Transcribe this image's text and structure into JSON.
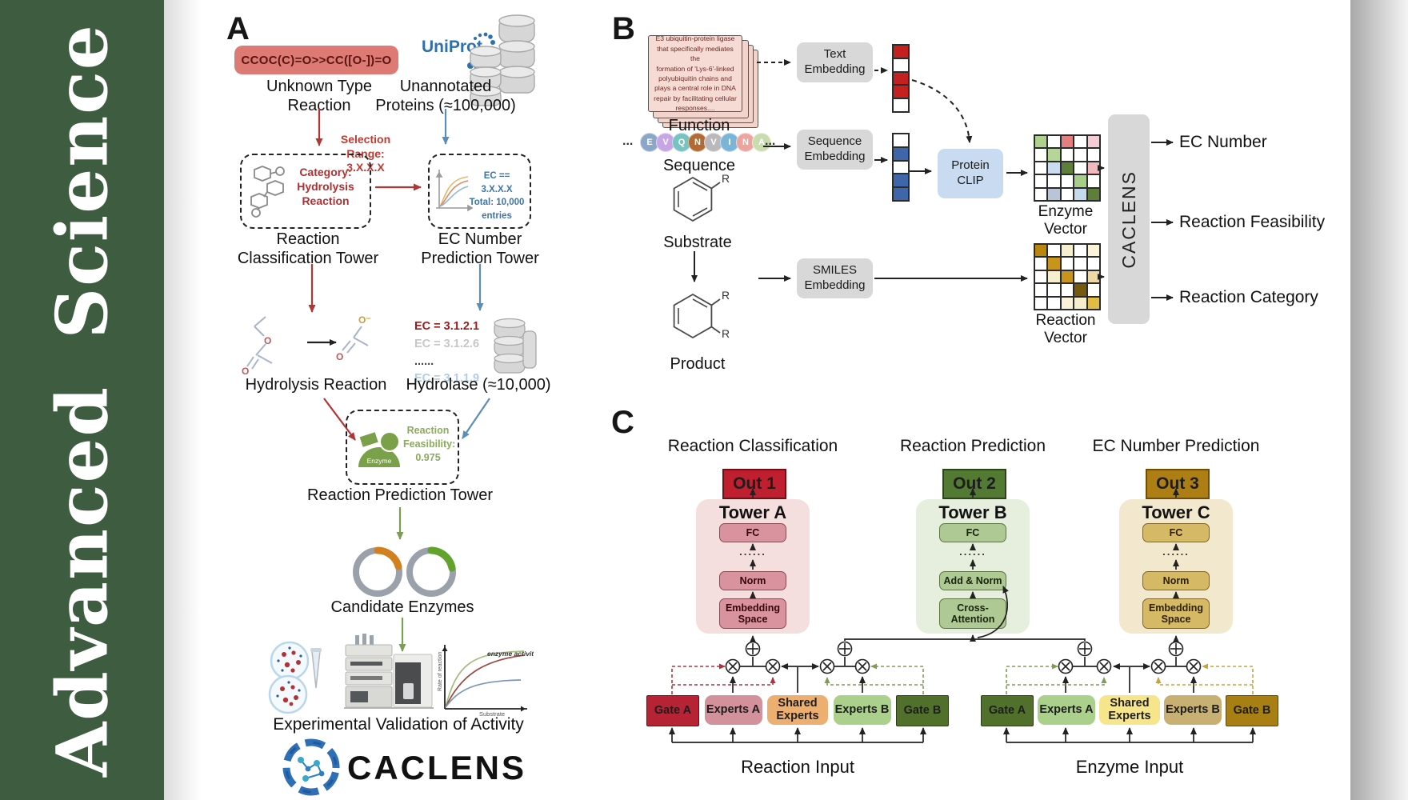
{
  "sidebar": {
    "journal": "Advanced Science",
    "bg_color": "#3d5c40"
  },
  "panelA": {
    "label": "A",
    "smiles": "CCOC(C)=O>>CC([O-])=O",
    "smiles_bg": "#dd7a74",
    "unknown": "Unknown Type\nReaction",
    "uniprot": "UniProt",
    "unannotated": "Unannotated\nProteins (≈100,000)",
    "selection": "Selection\nRange:\n3.X.X.X",
    "category": "Category:\nHydrolysis\nReaction",
    "ec_filter": "EC == 3.X.X.X\nTotal: 10,000\nentries",
    "tower1": "Reaction\nClassification Tower",
    "tower2": "EC Number\nPrediction Tower",
    "hydrolysis": "Hydrolysis Reaction",
    "ec_items": [
      {
        "text": "EC = 3.1.2.1",
        "color": "#9b1c1c"
      },
      {
        "text": "EC = 3.1.2.6",
        "color": "#c6c6c6"
      },
      {
        "text": "......",
        "color": "#444444"
      },
      {
        "text": "EC = 3.1.1.9",
        "color": "#b3cce6"
      }
    ],
    "hydrolase": "Hydrolase (≈10,000)",
    "enzyme_badge": "Enzyme",
    "feasibility": "Reaction\nFeasibility:\n0.975",
    "tower3": "Reaction Prediction Tower",
    "candidate": "Candidate Enzymes",
    "graph": {
      "curve_label": "enzyme activity",
      "ylabel": "Rate of reaction",
      "xlabel": "Substrate"
    },
    "validation": "Experimental Validation of Activity",
    "logo": "CACLENS",
    "arrow_red": "#b23434",
    "arrow_blue": "#5b8db8",
    "arrow_green": "#7a9e52"
  },
  "panelB": {
    "label": "B",
    "card": "E3 ubiquitin-protein ligase\nthat specifically mediates the\nformation of 'Lys-6'-linked\npolyubiquitin chains and\nplays a central role in DNA\nrepair by facilitating cellular\nresponses....",
    "function_label": "Function",
    "sequence_label": "Sequence",
    "substrate_label": "Substrate",
    "product_label": "Product",
    "r_label": "R",
    "ellipsis": "...",
    "letters": [
      {
        "ch": "E",
        "color": "#8ba7c7"
      },
      {
        "ch": "V",
        "color": "#c5a5e3"
      },
      {
        "ch": "Q",
        "color": "#76c3c0"
      },
      {
        "ch": "N",
        "color": "#b16a34"
      },
      {
        "ch": "V",
        "color": "#b9b9bd"
      },
      {
        "ch": "I",
        "color": "#7ab5d8"
      },
      {
        "ch": "N",
        "color": "#eca49e"
      },
      {
        "ch": "A",
        "color": "#c8dcae"
      }
    ],
    "boxes": {
      "text": "Text\nEmbedding",
      "seq": "Sequence\nEmbedding",
      "smiles": "SMILES\nEmbedding",
      "clip": "Protein\nCLIP"
    },
    "text_vector": [
      "#c42020",
      "#ffffff",
      "#c42020",
      "#c42020",
      "#ffffff"
    ],
    "seq_vector": [
      "#ffffff",
      "#3f66ab",
      "#ffffff",
      "#3f66ab",
      "#3f66ab"
    ],
    "enzyme_vector": {
      "label": "Enzyme Vector",
      "grid": [
        [
          "#aed28e",
          "#ffffff",
          "#e37f7f",
          "#ffffff",
          "#f6ccd4"
        ],
        [
          "#ffffff",
          "#b5d59a",
          "#ffffff",
          "#ffffff",
          "#ffffff"
        ],
        [
          "#ffffff",
          "#ccdcf0",
          "#5d7f37",
          "#ffffff",
          "#f2b9bf"
        ],
        [
          "#ffffff",
          "#ffffff",
          "#ffffff",
          "#a5cf86",
          "#ffffff"
        ],
        [
          "#ffffff",
          "#b9c4d6",
          "#ffffff",
          "#c5d9ef",
          "#5d7f37"
        ]
      ]
    },
    "reaction_vector": {
      "label": "Reaction Vector",
      "grid": [
        [
          "#b9860e",
          "#ffffff",
          "#f6efcd",
          "#ffffff",
          "#faf3d8"
        ],
        [
          "#ffffff",
          "#c8951c",
          "#ffffff",
          "#ffffff",
          "#ffffff"
        ],
        [
          "#ffffff",
          "#f6efcd",
          "#c8951c",
          "#ffffff",
          "#ecd9a4"
        ],
        [
          "#ffffff",
          "#ffffff",
          "#ffffff",
          "#77590e",
          "#ffffff"
        ],
        [
          "#ffffff",
          "#ffffff",
          "#faf3d8",
          "#f6efcd",
          "#e3bc45"
        ]
      ]
    },
    "caclens": "CACLENS",
    "outputs": [
      "EC Number",
      "Reaction Feasibility",
      "Reaction Category"
    ]
  },
  "panelC": {
    "label": "C",
    "towers": [
      {
        "title": "Reaction Classification",
        "out": "Out 1",
        "name": "Tower A",
        "fc": "FC",
        "dots": "......",
        "mid": "Norm",
        "bottom": "Embedding\nSpace",
        "out_bg": "#bf1f2f",
        "container_bg": "#f5dede",
        "block_bg": "#d9939e"
      },
      {
        "title": "Reaction Prediction",
        "out": "Out 2",
        "name": "Tower B",
        "fc": "FC",
        "dots": "......",
        "mid": "Add & Norm",
        "bottom": "Cross-\nAttention",
        "out_bg": "#527a33",
        "container_bg": "#e6eedd",
        "block_bg": "#afc994"
      },
      {
        "title": "EC Number Prediction",
        "out": "Out 3",
        "name": "Tower C",
        "fc": "FC",
        "dots": "......",
        "mid": "Norm",
        "bottom": "Embedding\nSpace",
        "out_bg": "#ad7e13",
        "container_bg": "#f1e8cd",
        "block_bg": "#d6b964"
      }
    ],
    "groups": [
      {
        "input": "Reaction Input",
        "boxes": [
          {
            "label": "Gate A",
            "bg": "#b52334",
            "name": "gate-a-reaction"
          },
          {
            "label": "Experts A",
            "bg": "#d2919b",
            "name": "experts-a-reaction"
          },
          {
            "label": "Shared\nExperts",
            "bg": "#ecaf70",
            "name": "shared-experts-reaction"
          },
          {
            "label": "Experts B",
            "bg": "#abd08b",
            "name": "experts-b-reaction"
          },
          {
            "label": "Gate B",
            "bg": "#50702c",
            "name": "gate-b-reaction"
          }
        ]
      },
      {
        "input": "Enzyme Input",
        "boxes": [
          {
            "label": "Gate A",
            "bg": "#50702c",
            "name": "gate-a-enzyme"
          },
          {
            "label": "Experts A",
            "bg": "#abd08b",
            "name": "experts-a-enzyme"
          },
          {
            "label": "Shared\nExperts",
            "bg": "#f7e58c",
            "name": "shared-experts-enzyme"
          },
          {
            "label": "Experts B",
            "bg": "#c7b071",
            "name": "experts-b-enzyme"
          },
          {
            "label": "Gate B",
            "bg": "#a87f12",
            "name": "gate-b-enzyme"
          }
        ]
      }
    ]
  }
}
